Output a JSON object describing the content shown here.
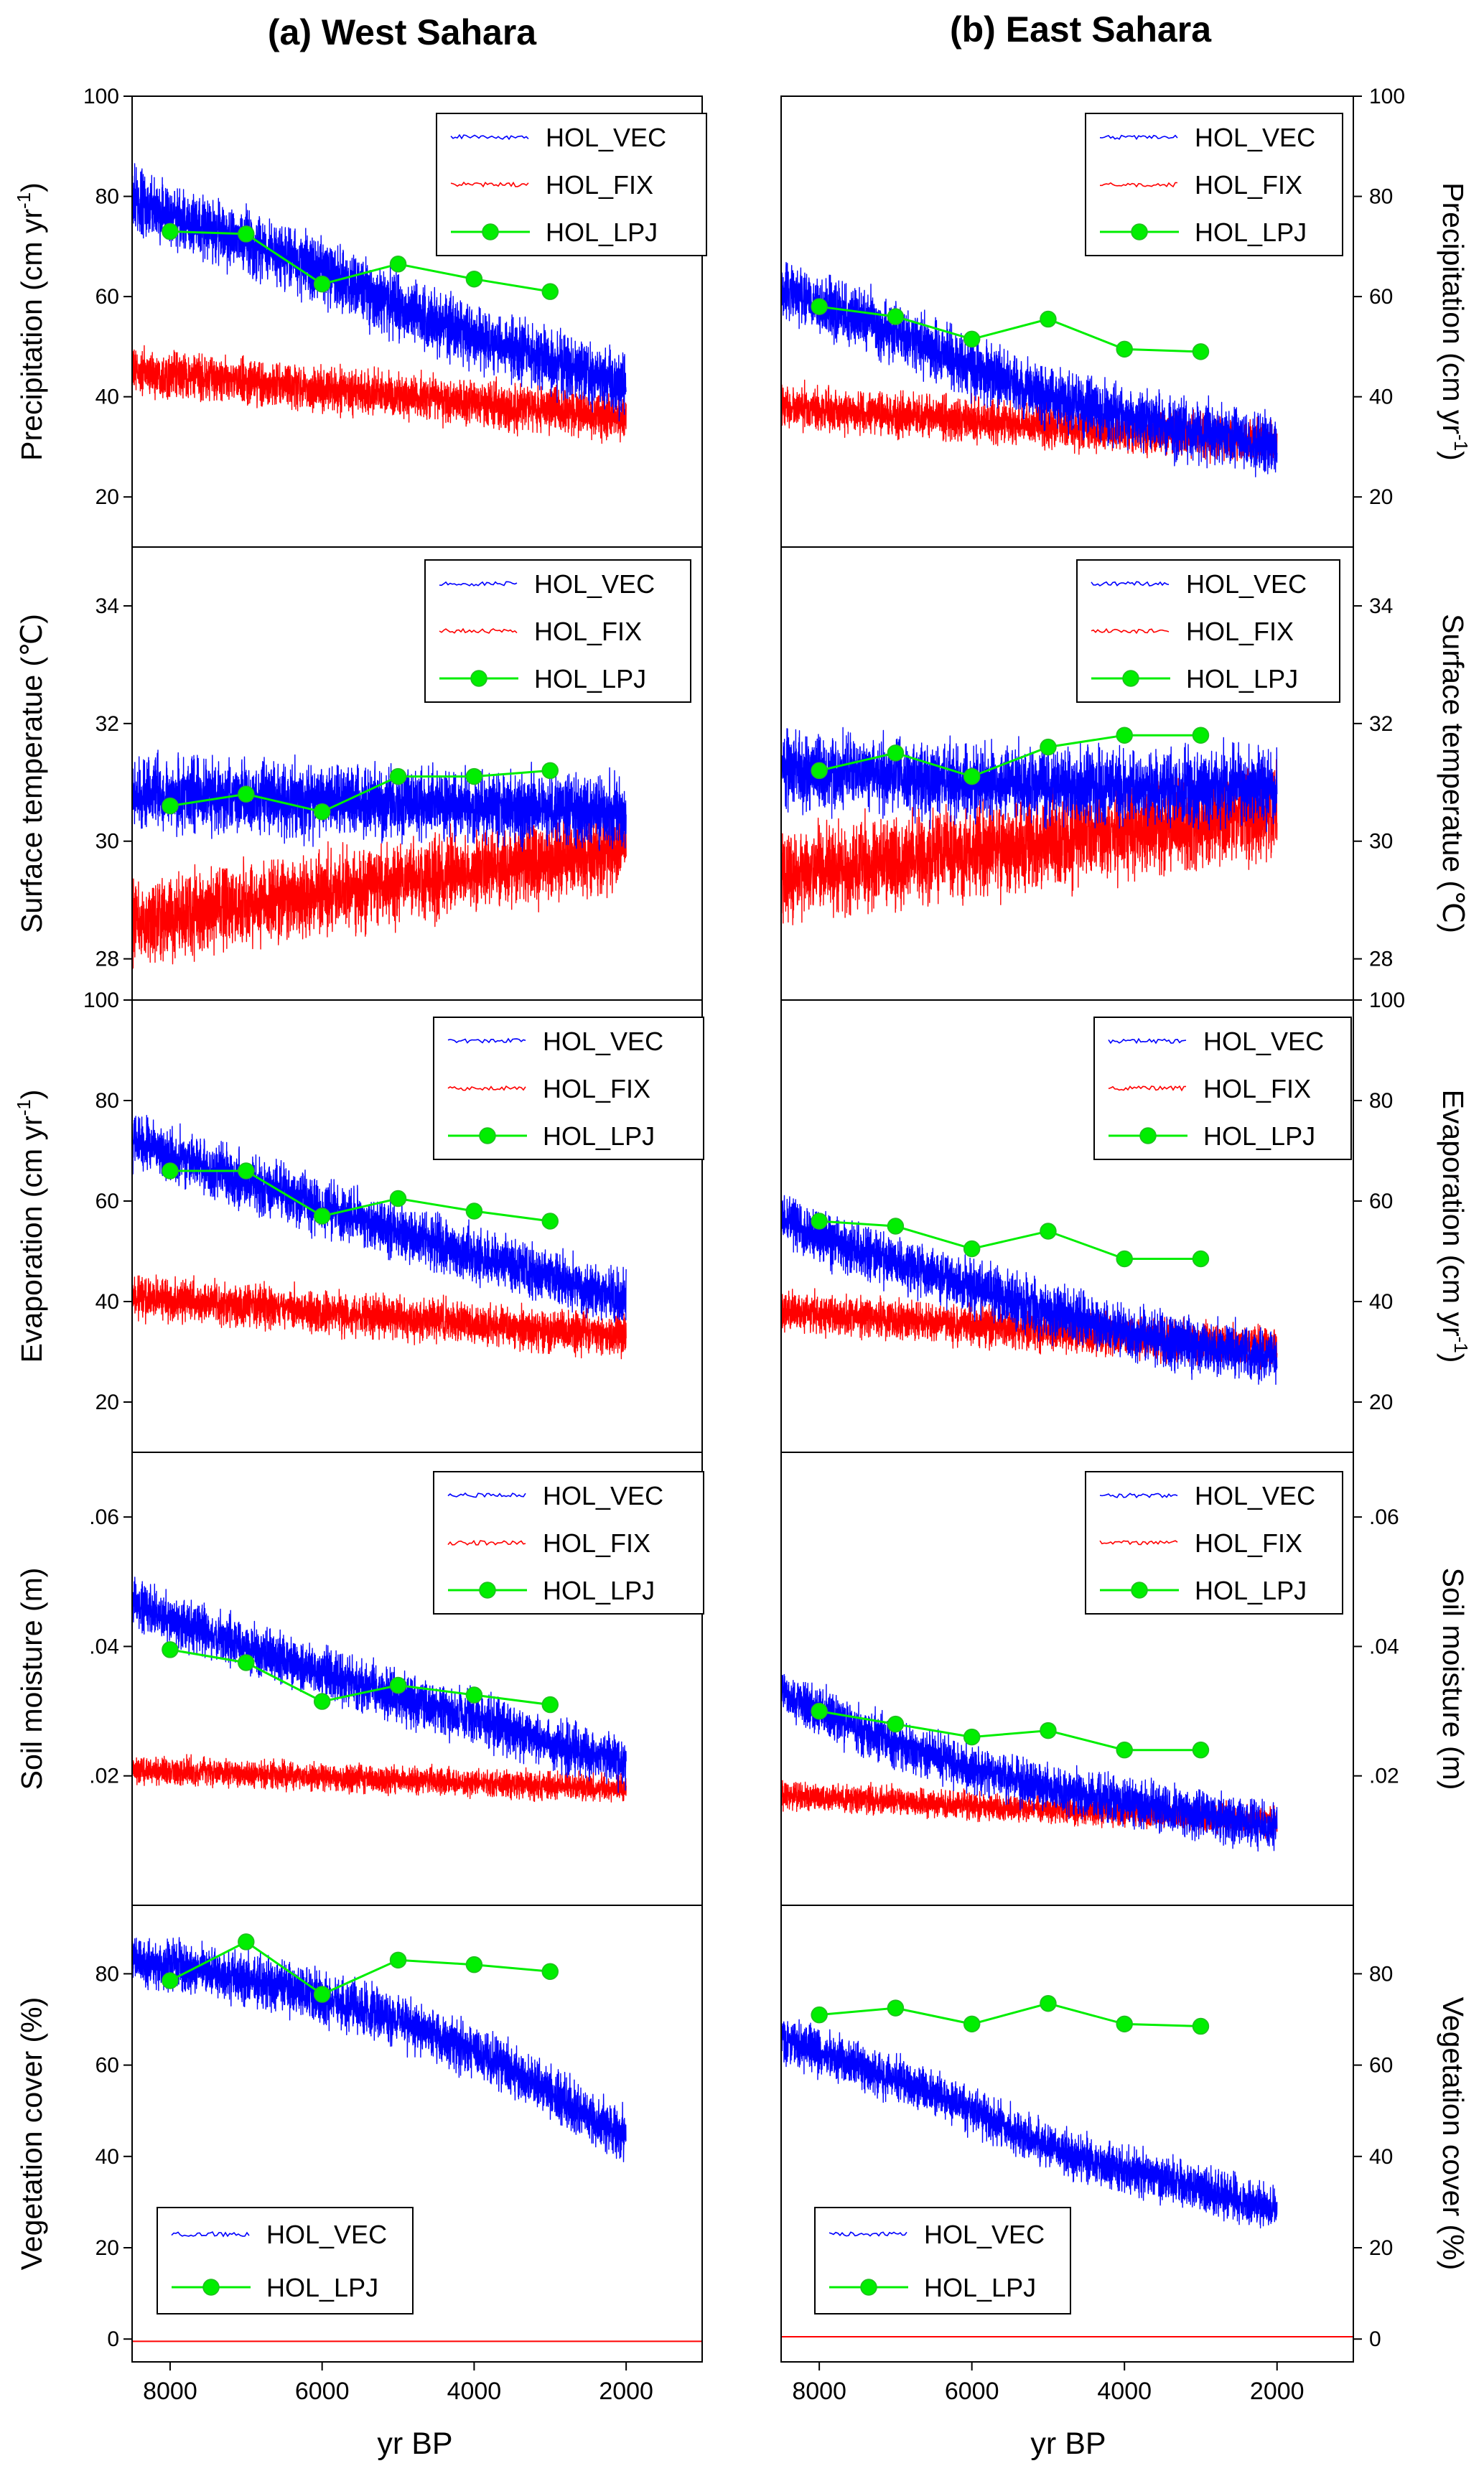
{
  "colors": {
    "vec": "#0000ff",
    "fix": "#ff0000",
    "lpj": "#00ee00",
    "lpj_edge": "#22bb22",
    "zero_line": "#ff0000"
  },
  "titles": {
    "west": "(a) West Sahara",
    "east": "(b) East Sahara"
  },
  "xlabel": "yr BP",
  "legend_names": {
    "vec": "HOL_VEC",
    "fix": "HOL_FIX",
    "lpj": "HOL_LPJ"
  },
  "chart_data": [
    {
      "type": "line",
      "id": "prec-west",
      "column": "west",
      "row": 0,
      "ylabel": "Precipitation (cm yr",
      "ylabel_sup": "-1",
      "ylabel_end": ")",
      "xlim": [
        8500,
        1000
      ],
      "x_ticks": [
        8000,
        6000,
        4000,
        2000
      ],
      "ylim": [
        10,
        100
      ],
      "y_ticks": [
        20,
        40,
        60,
        80,
        100
      ],
      "y_tick_labels": [
        "20",
        "40",
        "60",
        "80",
        "100"
      ],
      "series": [
        {
          "name": "HOL_VEC",
          "kind": "noisy",
          "x": [
            8500,
            8000,
            7000,
            6000,
            5000,
            4000,
            3000,
            2000
          ],
          "y": [
            79,
            76,
            71,
            65,
            58,
            52,
            47,
            42
          ],
          "noise": 4.2,
          "clip_max": 87
        },
        {
          "name": "HOL_FIX",
          "kind": "noisy",
          "x": [
            8500,
            2000
          ],
          "y": [
            45,
            36
          ],
          "noise": 3.0
        },
        {
          "name": "HOL_LPJ",
          "kind": "markers",
          "x": [
            8000,
            7000,
            6000,
            5000,
            4000,
            3000
          ],
          "y": [
            73,
            72.5,
            62.5,
            66.5,
            63.5,
            61
          ]
        }
      ]
    },
    {
      "type": "line",
      "id": "prec-east",
      "column": "east",
      "row": 0,
      "ylabel": "Precipitation (cm yr",
      "ylabel_sup": "-1",
      "ylabel_end": ")",
      "xlim": [
        8500,
        1000
      ],
      "x_ticks": [
        8000,
        6000,
        4000,
        2000
      ],
      "ylim": [
        10,
        100
      ],
      "y_ticks": [
        20,
        40,
        60,
        80,
        100
      ],
      "y_tick_labels": [
        "20",
        "40",
        "60",
        "80",
        "100"
      ],
      "series": [
        {
          "name": "HOL_VEC",
          "kind": "noisy",
          "x": [
            8500,
            8000,
            7000,
            6000,
            5000,
            4000,
            3000,
            2000
          ],
          "y": [
            62,
            58,
            53,
            46,
            40,
            36,
            33,
            30
          ],
          "noise": 4.0,
          "clip_max": 75
        },
        {
          "name": "HOL_FIX",
          "kind": "noisy",
          "x": [
            8500,
            2000
          ],
          "y": [
            38,
            31
          ],
          "noise": 2.8
        },
        {
          "name": "HOL_LPJ",
          "kind": "markers",
          "x": [
            8000,
            7000,
            6000,
            5000,
            4000,
            3000
          ],
          "y": [
            58,
            56,
            51.5,
            55.5,
            49.5,
            49
          ]
        }
      ]
    },
    {
      "type": "line",
      "id": "temp-west",
      "column": "west",
      "row": 1,
      "ylabel": "Surface temperatue (℃)",
      "xlim": [
        8500,
        1000
      ],
      "x_ticks": [
        8000,
        6000,
        4000,
        2000
      ],
      "ylim": [
        27.3,
        35.0
      ],
      "y_ticks": [
        28,
        30,
        32,
        34
      ],
      "y_tick_labels": [
        "28",
        "30",
        "32",
        "34"
      ],
      "series": [
        {
          "name": "HOL_VEC",
          "kind": "noisy",
          "x": [
            8500,
            8000,
            6000,
            4000,
            2000
          ],
          "y": [
            30.8,
            30.8,
            30.7,
            30.6,
            30.5
          ],
          "noise": 0.4
        },
        {
          "name": "HOL_FIX",
          "kind": "noisy",
          "x": [
            8500,
            2000
          ],
          "y": [
            28.6,
            29.9
          ],
          "noise": 0.45
        },
        {
          "name": "HOL_LPJ",
          "kind": "markers",
          "x": [
            8000,
            7000,
            6000,
            5000,
            4000,
            3000
          ],
          "y": [
            30.6,
            30.8,
            30.5,
            31.1,
            31.1,
            31.2
          ]
        }
      ]
    },
    {
      "type": "line",
      "id": "temp-east",
      "column": "east",
      "row": 1,
      "ylabel": "Surface temperatue (℃)",
      "xlim": [
        8500,
        1000
      ],
      "x_ticks": [
        8000,
        6000,
        4000,
        2000
      ],
      "ylim": [
        27.3,
        35.0
      ],
      "y_ticks": [
        28,
        30,
        32,
        34
      ],
      "y_tick_labels": [
        "28",
        "30",
        "32",
        "34"
      ],
      "series": [
        {
          "name": "HOL_VEC",
          "kind": "noisy",
          "x": [
            8500,
            8000,
            6000,
            4000,
            2000
          ],
          "y": [
            31.2,
            31.2,
            31.0,
            30.9,
            30.9
          ],
          "noise": 0.42
        },
        {
          "name": "HOL_FIX",
          "kind": "noisy",
          "x": [
            8500,
            2000
          ],
          "y": [
            29.4,
            30.5
          ],
          "noise": 0.5
        },
        {
          "name": "HOL_LPJ",
          "kind": "markers",
          "x": [
            8000,
            7000,
            6000,
            5000,
            4000,
            3000
          ],
          "y": [
            31.2,
            31.5,
            31.1,
            31.6,
            31.8,
            31.8
          ]
        }
      ]
    },
    {
      "type": "line",
      "id": "evap-west",
      "column": "west",
      "row": 2,
      "ylabel": "Evaporation (cm yr",
      "ylabel_sup": "-1",
      "ylabel_end": ")",
      "xlim": [
        8500,
        1000
      ],
      "x_ticks": [
        8000,
        6000,
        4000,
        2000
      ],
      "ylim": [
        10,
        100
      ],
      "y_ticks": [
        20,
        40,
        60,
        80,
        100
      ],
      "y_tick_labels": [
        "20",
        "40",
        "60",
        "80",
        "100"
      ],
      "series": [
        {
          "name": "HOL_VEC",
          "kind": "noisy",
          "x": [
            8500,
            8000,
            7000,
            6000,
            5000,
            4000,
            3000,
            2000
          ],
          "y": [
            72,
            69,
            64,
            59,
            54,
            49,
            45,
            40
          ],
          "noise": 3.6,
          "clip_max": 80
        },
        {
          "name": "HOL_FIX",
          "kind": "noisy",
          "x": [
            8500,
            2000
          ],
          "y": [
            41,
            33
          ],
          "noise": 2.8
        },
        {
          "name": "HOL_LPJ",
          "kind": "markers",
          "x": [
            8000,
            7000,
            6000,
            5000,
            4000,
            3000
          ],
          "y": [
            66,
            66,
            57,
            60.5,
            58,
            56
          ]
        }
      ]
    },
    {
      "type": "line",
      "id": "evap-east",
      "column": "east",
      "row": 2,
      "ylabel": "Evaporation (cm yr",
      "ylabel_sup": "-1",
      "ylabel_end": ")",
      "xlim": [
        8500,
        1000
      ],
      "x_ticks": [
        8000,
        6000,
        4000,
        2000
      ],
      "ylim": [
        10,
        100
      ],
      "y_ticks": [
        20,
        40,
        60,
        80,
        100
      ],
      "y_tick_labels": [
        "20",
        "40",
        "60",
        "80",
        "100"
      ],
      "series": [
        {
          "name": "HOL_VEC",
          "kind": "noisy",
          "x": [
            8500,
            8000,
            7000,
            6000,
            5000,
            4000,
            3000,
            2000
          ],
          "y": [
            57,
            53,
            48,
            43,
            38,
            34,
            31,
            29
          ],
          "noise": 3.6,
          "clip_max": 68
        },
        {
          "name": "HOL_FIX",
          "kind": "noisy",
          "x": [
            8500,
            2000
          ],
          "y": [
            38,
            31
          ],
          "noise": 2.6
        },
        {
          "name": "HOL_LPJ",
          "kind": "markers",
          "x": [
            8000,
            7000,
            6000,
            5000,
            4000,
            3000
          ],
          "y": [
            56,
            55,
            50.5,
            54,
            48.5,
            48.5
          ]
        }
      ]
    },
    {
      "type": "line",
      "id": "soil-west",
      "column": "west",
      "row": 3,
      "ylabel": "Soil moisture (m)",
      "xlim": [
        8500,
        1000
      ],
      "x_ticks": [
        8000,
        6000,
        4000,
        2000
      ],
      "ylim": [
        0.0,
        0.07
      ],
      "y_ticks": [
        0.02,
        0.04,
        0.06
      ],
      "y_tick_labels": [
        ".02",
        ".04",
        ".06"
      ],
      "series": [
        {
          "name": "HOL_VEC",
          "kind": "noisy",
          "x": [
            8500,
            8000,
            7000,
            6000,
            5000,
            4000,
            3000,
            2000
          ],
          "y": [
            0.047,
            0.044,
            0.04,
            0.036,
            0.032,
            0.029,
            0.025,
            0.022
          ],
          "noise": 0.0026,
          "clip_max": 0.053
        },
        {
          "name": "HOL_FIX",
          "kind": "noisy",
          "x": [
            8500,
            2000
          ],
          "y": [
            0.021,
            0.018
          ],
          "noise": 0.0014
        },
        {
          "name": "HOL_LPJ",
          "kind": "markers",
          "x": [
            8000,
            7000,
            6000,
            5000,
            4000,
            3000
          ],
          "y": [
            0.0395,
            0.0375,
            0.0315,
            0.034,
            0.0325,
            0.031
          ]
        }
      ]
    },
    {
      "type": "line",
      "id": "soil-east",
      "column": "east",
      "row": 3,
      "ylabel": "Soil moisture (m)",
      "xlim": [
        8500,
        1000
      ],
      "x_ticks": [
        8000,
        6000,
        4000,
        2000
      ],
      "ylim": [
        0.0,
        0.07
      ],
      "y_ticks": [
        0.02,
        0.04,
        0.06
      ],
      "y_tick_labels": [
        ".02",
        ".04",
        ".06"
      ],
      "series": [
        {
          "name": "HOL_VEC",
          "kind": "noisy",
          "x": [
            8500,
            8000,
            7000,
            6000,
            5000,
            4000,
            3000,
            2000
          ],
          "y": [
            0.033,
            0.03,
            0.025,
            0.021,
            0.018,
            0.016,
            0.014,
            0.012
          ],
          "noise": 0.0024,
          "clip_max": 0.043
        },
        {
          "name": "HOL_FIX",
          "kind": "noisy",
          "x": [
            8500,
            2000
          ],
          "y": [
            0.017,
            0.013
          ],
          "noise": 0.0014
        },
        {
          "name": "HOL_LPJ",
          "kind": "markers",
          "x": [
            8000,
            7000,
            6000,
            5000,
            4000,
            3000
          ],
          "y": [
            0.03,
            0.028,
            0.026,
            0.027,
            0.024,
            0.024
          ]
        }
      ]
    },
    {
      "type": "line",
      "id": "veg-west",
      "column": "west",
      "row": 4,
      "ylabel": "Vegetation cover (%)",
      "xlim": [
        8500,
        1000
      ],
      "x_ticks": [
        8000,
        6000,
        4000,
        2000
      ],
      "ylim": [
        -5,
        95
      ],
      "y_ticks": [
        0,
        20,
        40,
        60,
        80
      ],
      "y_tick_labels": [
        "0",
        "20",
        "40",
        "60",
        "80"
      ],
      "series": [
        {
          "name": "HOL_VEC",
          "kind": "noisy",
          "x": [
            8500,
            8000,
            7000,
            6000,
            5000,
            4000,
            3000,
            2000
          ],
          "y": [
            83,
            82,
            79,
            75,
            70,
            63,
            54,
            44
          ],
          "noise": 3.8,
          "clip_max": 88
        },
        {
          "name": "HOL_FIX",
          "kind": "flat",
          "x": [
            8500,
            1000
          ],
          "y": [
            -0.5,
            -0.5
          ]
        },
        {
          "name": "HOL_LPJ",
          "kind": "markers",
          "x": [
            8000,
            7000,
            6000,
            5000,
            4000,
            3000
          ],
          "y": [
            78.5,
            87,
            75.5,
            83,
            82,
            80.5
          ]
        }
      ]
    },
    {
      "type": "line",
      "id": "veg-east",
      "column": "east",
      "row": 4,
      "ylabel": "Vegetation cover (%)",
      "xlim": [
        8500,
        1000
      ],
      "x_ticks": [
        8000,
        6000,
        4000,
        2000
      ],
      "ylim": [
        -5,
        95
      ],
      "y_ticks": [
        0,
        20,
        40,
        60,
        80
      ],
      "y_tick_labels": [
        "0",
        "20",
        "40",
        "60",
        "80"
      ],
      "series": [
        {
          "name": "HOL_VEC",
          "kind": "noisy",
          "x": [
            8500,
            8000,
            7000,
            6000,
            5000,
            4000,
            3000,
            2000
          ],
          "y": [
            66,
            63,
            57,
            50,
            42,
            37,
            33,
            28
          ],
          "noise": 3.2,
          "clip_max": 70
        },
        {
          "name": "HOL_FIX",
          "kind": "flat",
          "x": [
            8500,
            1000
          ],
          "y": [
            0.5,
            0.5
          ]
        },
        {
          "name": "HOL_LPJ",
          "kind": "markers",
          "x": [
            8000,
            7000,
            6000,
            5000,
            4000,
            3000
          ],
          "y": [
            71,
            72.5,
            69,
            73.5,
            69,
            68.5
          ]
        }
      ]
    }
  ]
}
